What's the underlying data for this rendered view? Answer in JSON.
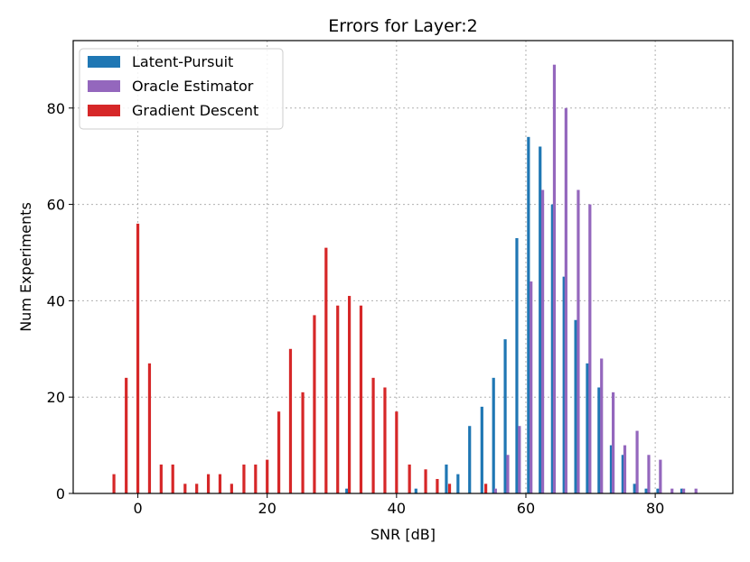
{
  "chart_data": {
    "type": "bar",
    "title": "Errors for Layer:2",
    "xlabel": "SNR [dB]",
    "ylabel": "Num Experiments",
    "xlim": [
      -10,
      92
    ],
    "ylim": [
      0,
      94
    ],
    "xticks": [
      0,
      20,
      40,
      60,
      80
    ],
    "yticks": [
      0,
      20,
      40,
      60,
      80
    ],
    "grid": true,
    "legend_position": "top-left",
    "series": [
      {
        "name": "Latent-Pursuit",
        "color": "#1f77b4",
        "points": [
          {
            "x": 32.3,
            "y": 1
          },
          {
            "x": 43.0,
            "y": 1
          },
          {
            "x": 47.7,
            "y": 6
          },
          {
            "x": 49.5,
            "y": 4
          },
          {
            "x": 51.3,
            "y": 14
          },
          {
            "x": 53.2,
            "y": 18
          },
          {
            "x": 55.0,
            "y": 24
          },
          {
            "x": 56.8,
            "y": 32
          },
          {
            "x": 58.6,
            "y": 53
          },
          {
            "x": 60.4,
            "y": 74
          },
          {
            "x": 62.2,
            "y": 72
          },
          {
            "x": 64.1,
            "y": 60
          },
          {
            "x": 65.9,
            "y": 45
          },
          {
            "x": 67.7,
            "y": 36
          },
          {
            "x": 69.5,
            "y": 27
          },
          {
            "x": 71.3,
            "y": 22
          },
          {
            "x": 73.2,
            "y": 10
          },
          {
            "x": 75.0,
            "y": 8
          },
          {
            "x": 76.8,
            "y": 2
          },
          {
            "x": 78.6,
            "y": 1
          },
          {
            "x": 80.4,
            "y": 1
          },
          {
            "x": 84.1,
            "y": 1
          }
        ]
      },
      {
        "name": "Oracle Estimator",
        "color": "#9467bd",
        "points": [
          {
            "x": 55.3,
            "y": 1
          },
          {
            "x": 57.2,
            "y": 8
          },
          {
            "x": 59.0,
            "y": 14
          },
          {
            "x": 60.8,
            "y": 44
          },
          {
            "x": 62.6,
            "y": 63
          },
          {
            "x": 64.4,
            "y": 89
          },
          {
            "x": 66.2,
            "y": 80
          },
          {
            "x": 68.1,
            "y": 63
          },
          {
            "x": 69.9,
            "y": 60
          },
          {
            "x": 71.7,
            "y": 28
          },
          {
            "x": 73.5,
            "y": 21
          },
          {
            "x": 75.3,
            "y": 10
          },
          {
            "x": 77.2,
            "y": 13
          },
          {
            "x": 79.0,
            "y": 8
          },
          {
            "x": 80.8,
            "y": 7
          },
          {
            "x": 82.6,
            "y": 1
          },
          {
            "x": 84.4,
            "y": 1
          },
          {
            "x": 86.3,
            "y": 1
          }
        ]
      },
      {
        "name": "Gradient Descent",
        "color": "#d62728",
        "points": [
          {
            "x": -3.7,
            "y": 4
          },
          {
            "x": -1.8,
            "y": 24
          },
          {
            "x": 0.0,
            "y": 56
          },
          {
            "x": 1.8,
            "y": 27
          },
          {
            "x": 3.6,
            "y": 6
          },
          {
            "x": 5.4,
            "y": 6
          },
          {
            "x": 7.3,
            "y": 2
          },
          {
            "x": 9.1,
            "y": 2
          },
          {
            "x": 10.9,
            "y": 4
          },
          {
            "x": 12.7,
            "y": 4
          },
          {
            "x": 14.5,
            "y": 2
          },
          {
            "x": 16.4,
            "y": 6
          },
          {
            "x": 18.2,
            "y": 6
          },
          {
            "x": 20.0,
            "y": 7
          },
          {
            "x": 21.8,
            "y": 17
          },
          {
            "x": 23.6,
            "y": 30
          },
          {
            "x": 25.5,
            "y": 21
          },
          {
            "x": 27.3,
            "y": 37
          },
          {
            "x": 29.1,
            "y": 51
          },
          {
            "x": 30.9,
            "y": 39
          },
          {
            "x": 32.7,
            "y": 41
          },
          {
            "x": 34.5,
            "y": 39
          },
          {
            "x": 36.4,
            "y": 24
          },
          {
            "x": 38.2,
            "y": 22
          },
          {
            "x": 40.0,
            "y": 17
          },
          {
            "x": 42.0,
            "y": 6
          },
          {
            "x": 44.5,
            "y": 5
          },
          {
            "x": 46.3,
            "y": 3
          },
          {
            "x": 48.2,
            "y": 2
          },
          {
            "x": 53.8,
            "y": 2
          }
        ]
      }
    ]
  }
}
